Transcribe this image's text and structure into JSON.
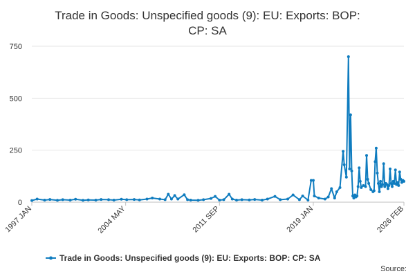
{
  "chart_data": {
    "type": "line",
    "title": "Trade in Goods: Unspecified goods (9): EU: Exports: BOP: CP: SA",
    "title_lines": [
      "Trade in Goods: Unspecified goods (9): EU: Exports: BOP:",
      "CP: SA"
    ],
    "xlabel": "",
    "ylabel": "",
    "x_tick_labels": [
      "1997 JAN",
      "2004 MAY",
      "2011 SEP",
      "2019 JAN",
      "2026 FEB"
    ],
    "y_ticks": [
      0,
      250,
      500,
      750
    ],
    "ylim": [
      0,
      750
    ],
    "x_range": [
      "1997 JAN",
      "2026 FEB"
    ],
    "grid": "horizontal",
    "legend_position": "bottom",
    "series": [
      {
        "name": "Trade in Goods: Unspecified goods (9): EU: Exports: BOP: CP: SA",
        "color": "#0f7cbf",
        "points": [
          [
            "1997 JAN",
            8
          ],
          [
            "1997 JUN",
            15
          ],
          [
            "1998 JAN",
            10
          ],
          [
            "1998 JUN",
            13
          ],
          [
            "1999 JAN",
            9
          ],
          [
            "1999 JUN",
            12
          ],
          [
            "2000 JAN",
            10
          ],
          [
            "2000 JUN",
            14
          ],
          [
            "2001 JAN",
            9
          ],
          [
            "2001 JUN",
            11
          ],
          [
            "2002 JAN",
            10
          ],
          [
            "2002 JUN",
            13
          ],
          [
            "2003 JAN",
            12
          ],
          [
            "2003 JUN",
            10
          ],
          [
            "2004 JAN",
            14
          ],
          [
            "2004 JUN",
            12
          ],
          [
            "2005 JAN",
            13
          ],
          [
            "2005 JUN",
            11
          ],
          [
            "2006 JAN",
            15
          ],
          [
            "2006 JUN",
            20
          ],
          [
            "2007 JAN",
            15
          ],
          [
            "2007 JUN",
            12
          ],
          [
            "2007 SEP",
            38
          ],
          [
            "2007 DEC",
            15
          ],
          [
            "2008 MAR",
            32
          ],
          [
            "2008 JUN",
            15
          ],
          [
            "2008 DEC",
            36
          ],
          [
            "2009 MAR",
            12
          ],
          [
            "2009 JUN",
            10
          ],
          [
            "2010 JAN",
            9
          ],
          [
            "2010 JUN",
            12
          ],
          [
            "2011 JAN",
            18
          ],
          [
            "2011 MAY",
            28
          ],
          [
            "2011 SEP",
            10
          ],
          [
            "2012 JAN",
            12
          ],
          [
            "2012 JUN",
            38
          ],
          [
            "2012 SEP",
            15
          ],
          [
            "2013 JAN",
            10
          ],
          [
            "2013 JUN",
            12
          ],
          [
            "2014 JAN",
            11
          ],
          [
            "2014 JUN",
            13
          ],
          [
            "2015 JAN",
            10
          ],
          [
            "2015 JUN",
            15
          ],
          [
            "2016 JAN",
            28
          ],
          [
            "2016 JUN",
            12
          ],
          [
            "2017 JAN",
            15
          ],
          [
            "2017 JUN",
            35
          ],
          [
            "2017 DEC",
            12
          ],
          [
            "2018 MAR",
            30
          ],
          [
            "2018 AUG",
            10
          ],
          [
            "2018 NOV",
            105
          ],
          [
            "2019 JAN",
            105
          ],
          [
            "2019 FEB",
            30
          ],
          [
            "2019 JUN",
            20
          ],
          [
            "2019 DEC",
            15
          ],
          [
            "2020 MAR",
            25
          ],
          [
            "2020 JUN",
            65
          ],
          [
            "2020 SEP",
            20
          ],
          [
            "2020 NOV",
            50
          ],
          [
            "2021 FEB",
            70
          ],
          [
            "2021 MAY",
            245
          ],
          [
            "2021 JUN",
            180
          ],
          [
            "2021 AUG",
            120
          ],
          [
            "2021 OCT",
            700
          ],
          [
            "2021 NOV",
            160
          ],
          [
            "2021 DEC",
            420
          ],
          [
            "2022 JAN",
            150
          ],
          [
            "2022 FEB",
            30
          ],
          [
            "2022 MAR",
            20
          ],
          [
            "2022 APR",
            35
          ],
          [
            "2022 MAY",
            25
          ],
          [
            "2022 JUN",
            30
          ],
          [
            "2022 JUL",
            75
          ],
          [
            "2022 AUG",
            165
          ],
          [
            "2022 SEP",
            100
          ],
          [
            "2022 OCT",
            70
          ],
          [
            "2022 DEC",
            80
          ],
          [
            "2023 FEB",
            75
          ],
          [
            "2023 MAR",
            225
          ],
          [
            "2023 APR",
            110
          ],
          [
            "2023 MAY",
            90
          ],
          [
            "2023 JUL",
            60
          ],
          [
            "2023 SEP",
            50
          ],
          [
            "2023 OCT",
            55
          ],
          [
            "2023 NOV",
            195
          ],
          [
            "2023 DEC",
            260
          ],
          [
            "2024 JAN",
            140
          ],
          [
            "2024 FEB",
            90
          ],
          [
            "2024 MAR",
            50
          ],
          [
            "2024 APR",
            100
          ],
          [
            "2024 MAY",
            75
          ],
          [
            "2024 JUN",
            85
          ],
          [
            "2024 JUL",
            185
          ],
          [
            "2024 AUG",
            75
          ],
          [
            "2024 SEP",
            90
          ],
          [
            "2024 OCT",
            85
          ],
          [
            "2024 NOV",
            65
          ],
          [
            "2024 DEC",
            80
          ],
          [
            "2025 JAN",
            160
          ],
          [
            "2025 FEB",
            90
          ],
          [
            "2025 MAR",
            75
          ],
          [
            "2025 APR",
            100
          ],
          [
            "2025 MAY",
            90
          ],
          [
            "2025 JUN",
            155
          ],
          [
            "2025 JUL",
            85
          ],
          [
            "2025 AUG",
            95
          ],
          [
            "2025 SEP",
            80
          ],
          [
            "2025 OCT",
            145
          ],
          [
            "2025 NOV",
            110
          ],
          [
            "2025 DEC",
            95
          ],
          [
            "2026 JAN",
            105
          ],
          [
            "2026 FEB",
            100
          ]
        ]
      }
    ]
  },
  "legend": {
    "label": "Trade in Goods: Unspecified goods (9): EU: Exports: BOP: CP: SA"
  },
  "source": {
    "label": "Source:"
  }
}
